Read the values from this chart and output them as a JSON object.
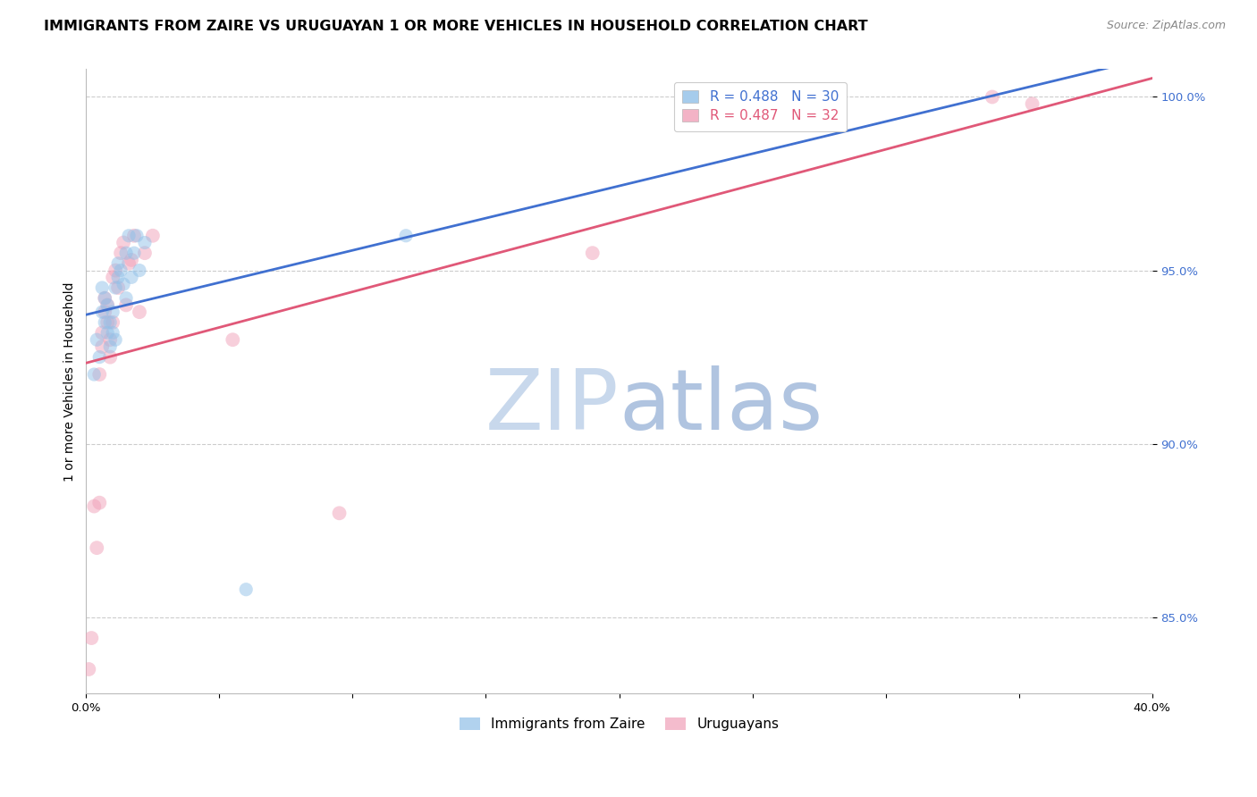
{
  "title": "IMMIGRANTS FROM ZAIRE VS URUGUAYAN 1 OR MORE VEHICLES IN HOUSEHOLD CORRELATION CHART",
  "source": "Source: ZipAtlas.com",
  "ylabel": "1 or more Vehicles in Household",
  "xlim": [
    0.0,
    0.4
  ],
  "ylim": [
    0.828,
    1.008
  ],
  "xticks": [
    0.0,
    0.05,
    0.1,
    0.15,
    0.2,
    0.25,
    0.3,
    0.35,
    0.4
  ],
  "xticklabels": [
    "0.0%",
    "",
    "",
    "",
    "",
    "",
    "",
    "",
    "40.0%"
  ],
  "yticks": [
    0.85,
    0.9,
    0.95,
    1.0
  ],
  "yticklabels": [
    "85.0%",
    "90.0%",
    "95.0%",
    "100.0%"
  ],
  "blue_color": "#90c0e8",
  "pink_color": "#f0a0b8",
  "blue_line_color": "#4070d0",
  "pink_line_color": "#e05878",
  "legend_blue_text_color": "#4070d0",
  "legend_pink_text_color": "#e05878",
  "grid_color": "#cccccc",
  "background_color": "#ffffff",
  "watermark_zip_color": "#c8d8ec",
  "watermark_atlas_color": "#b0c4e0",
  "r_blue": 0.488,
  "n_blue": 30,
  "r_pink": 0.487,
  "n_pink": 32,
  "blue_scatter_x": [
    0.003,
    0.004,
    0.005,
    0.006,
    0.006,
    0.007,
    0.007,
    0.008,
    0.008,
    0.009,
    0.009,
    0.01,
    0.01,
    0.011,
    0.011,
    0.012,
    0.012,
    0.013,
    0.014,
    0.015,
    0.015,
    0.016,
    0.017,
    0.018,
    0.019,
    0.02,
    0.022,
    0.06,
    0.12,
    0.27
  ],
  "blue_scatter_y": [
    0.92,
    0.93,
    0.925,
    0.945,
    0.938,
    0.935,
    0.942,
    0.932,
    0.94,
    0.928,
    0.935,
    0.932,
    0.938,
    0.945,
    0.93,
    0.948,
    0.952,
    0.95,
    0.946,
    0.942,
    0.955,
    0.96,
    0.948,
    0.955,
    0.96,
    0.95,
    0.958,
    0.858,
    0.96,
    1.0
  ],
  "pink_scatter_x": [
    0.001,
    0.002,
    0.003,
    0.004,
    0.005,
    0.005,
    0.006,
    0.006,
    0.007,
    0.007,
    0.008,
    0.008,
    0.009,
    0.009,
    0.01,
    0.01,
    0.011,
    0.012,
    0.013,
    0.014,
    0.015,
    0.016,
    0.017,
    0.018,
    0.02,
    0.022,
    0.025,
    0.055,
    0.095,
    0.19,
    0.34,
    0.355
  ],
  "pink_scatter_y": [
    0.835,
    0.844,
    0.882,
    0.87,
    0.883,
    0.92,
    0.928,
    0.932,
    0.938,
    0.942,
    0.935,
    0.94,
    0.925,
    0.93,
    0.935,
    0.948,
    0.95,
    0.945,
    0.955,
    0.958,
    0.94,
    0.952,
    0.953,
    0.96,
    0.938,
    0.955,
    0.96,
    0.93,
    0.88,
    0.955,
    1.0,
    0.998
  ],
  "dot_size_blue": 120,
  "dot_size_pink": 130,
  "dot_alpha": 0.5,
  "title_fontsize": 11.5,
  "axis_label_fontsize": 10,
  "tick_fontsize": 9.5,
  "legend_fontsize": 11,
  "source_fontsize": 9
}
